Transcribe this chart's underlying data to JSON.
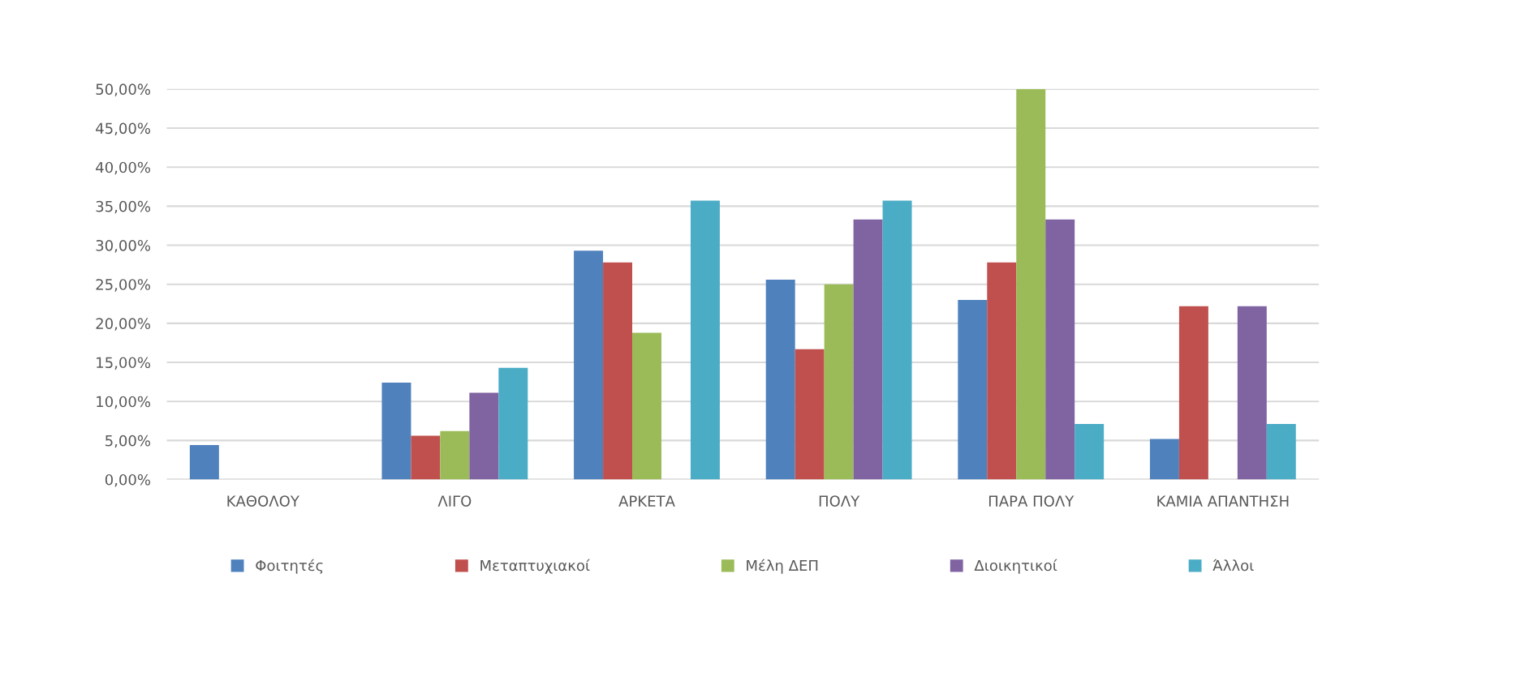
{
  "chart_data": {
    "type": "bar",
    "categories": [
      "ΚΑΘΟΛΟΥ",
      "ΛΙΓΟ",
      "ΑΡΚΕΤΑ",
      "ΠΟΛΥ",
      "ΠΑΡΑ ΠΟΛΥ",
      "ΚΑΜΙΑ ΑΠΑΝΤΗΣΗ"
    ],
    "series": [
      {
        "name": "Φοιτητές",
        "color": "#4f81bd",
        "values": [
          4.4,
          12.4,
          29.3,
          25.6,
          23.0,
          5.2
        ]
      },
      {
        "name": "Μεταπτυχιακοί",
        "color": "#c0504d",
        "values": [
          0,
          5.6,
          27.8,
          16.7,
          27.8,
          22.2
        ]
      },
      {
        "name": "Μέλη ΔΕΠ",
        "color": "#9bbb59",
        "values": [
          0,
          6.2,
          18.8,
          25.0,
          50.0,
          0
        ]
      },
      {
        "name": "Διοικητικοί",
        "color": "#8064a2",
        "values": [
          0,
          11.1,
          0,
          33.3,
          33.3,
          22.2
        ]
      },
      {
        "name": "Άλλοι",
        "color": "#4bacc6",
        "values": [
          0,
          14.3,
          35.7,
          35.7,
          7.1,
          7.1
        ]
      }
    ],
    "ylim": [
      0,
      50
    ],
    "yticks": [
      {
        "value": 0,
        "label": "0,00%"
      },
      {
        "value": 5,
        "label": "5,00%"
      },
      {
        "value": 10,
        "label": "10,00%"
      },
      {
        "value": 15,
        "label": "15,00%"
      },
      {
        "value": 20,
        "label": "20,00%"
      },
      {
        "value": 25,
        "label": "25,00%"
      },
      {
        "value": 30,
        "label": "30,00%"
      },
      {
        "value": 35,
        "label": "35,00%"
      },
      {
        "value": 40,
        "label": "40,00%"
      },
      {
        "value": 45,
        "label": "45,00%"
      },
      {
        "value": 50,
        "label": "50,00%"
      }
    ],
    "grid": "y",
    "legend": "bottom"
  }
}
